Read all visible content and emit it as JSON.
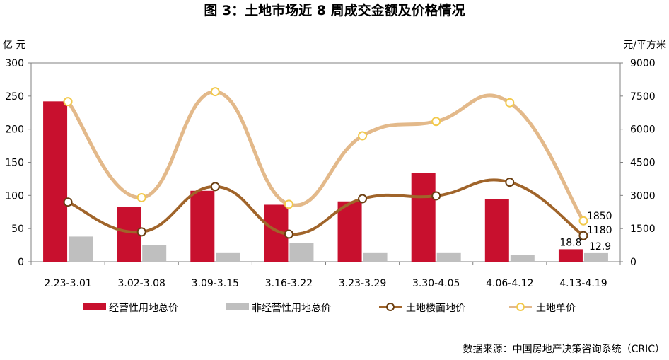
{
  "title": "图 3：土地市场近 8 周成交金额及价格情况",
  "source": "数据来源：中国房地产决策咨询系统（CRIC）",
  "colors": {
    "operating_total": "#C8102E",
    "non_operating_total": "#BFBFBF",
    "floor_price": "#A0642A",
    "unit_price": "#E3B98A"
  },
  "chart_data": {
    "type": "bar",
    "title": "图 3：土地市场近 8 周成交金额及价格情况",
    "categories": [
      "2.23-3.01",
      "3.02-3.08",
      "3.09-3.15",
      "3.16-3.22",
      "3.23-3.29",
      "3.30-4.05",
      "4.06-4.12",
      "4.13-4.19"
    ],
    "y_left": {
      "unit": "亿 元",
      "range": [
        0,
        300
      ],
      "ticks": [
        0,
        50,
        100,
        150,
        200,
        250,
        300
      ]
    },
    "y_right": {
      "unit": "元/平方米",
      "range": [
        0,
        9000
      ],
      "ticks": [
        0,
        1500,
        3000,
        4500,
        6000,
        7500,
        9000
      ]
    },
    "grid": false,
    "legend_position": "bottom",
    "series": [
      {
        "name": "经营性用地总价",
        "type": "bar",
        "axis": "left",
        "values": [
          242,
          83,
          107,
          86,
          91,
          134,
          94,
          18.8
        ]
      },
      {
        "name": "非经营性用地总价",
        "type": "bar",
        "axis": "left",
        "values": [
          38,
          25,
          13,
          28,
          13,
          13,
          10,
          12.9
        ]
      },
      {
        "name": "土地楼面地价",
        "type": "line",
        "axis": "right",
        "marker": "circle",
        "values": [
          2700,
          1350,
          3400,
          1250,
          2850,
          2980,
          3600,
          1180
        ]
      },
      {
        "name": "土地单价",
        "type": "line",
        "axis": "right",
        "marker": "circle",
        "values": [
          7250,
          2900,
          7700,
          2600,
          5700,
          6350,
          7200,
          1850
        ]
      }
    ],
    "data_labels": [
      {
        "series": "经营性用地总价",
        "category": "4.13-4.19",
        "text": "18.8"
      },
      {
        "series": "非经营性用地总价",
        "category": "4.13-4.19",
        "text": "12.9"
      },
      {
        "series": "土地楼面地价",
        "category": "4.13-4.19",
        "text": "1180"
      },
      {
        "series": "土地单价",
        "category": "4.13-4.19",
        "text": "1850"
      }
    ]
  }
}
